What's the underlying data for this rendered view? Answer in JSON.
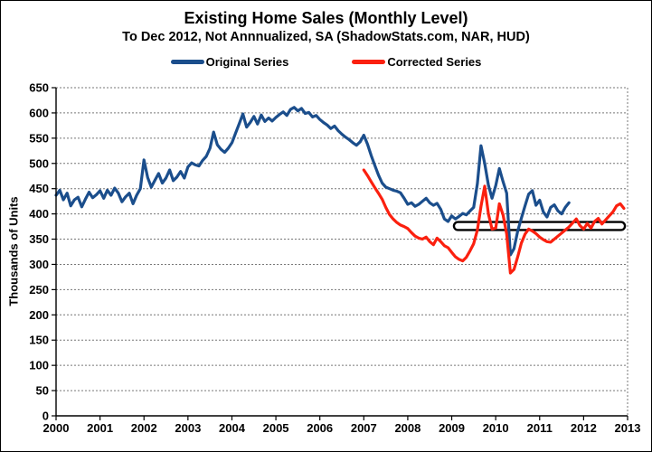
{
  "chart_data": {
    "type": "line",
    "title": "Existing Home Sales (Monthly Level)",
    "subtitle": "To Dec 2012, Not Annnualized, SA (ShadowStats.com, NAR, HUD)",
    "ylabel": "Thousands of Units",
    "xlim": [
      2000,
      2013
    ],
    "ylim": [
      0,
      650
    ],
    "x_ticks": [
      2000,
      2001,
      2002,
      2003,
      2004,
      2005,
      2006,
      2007,
      2008,
      2009,
      2010,
      2011,
      2012,
      2013
    ],
    "y_ticks": [
      0,
      50,
      100,
      150,
      200,
      250,
      300,
      350,
      400,
      450,
      500,
      550,
      600,
      650
    ],
    "grid": "horizontal-dotted",
    "legend_position": "top-center",
    "frequency": "monthly",
    "series": [
      {
        "name": "Original Series",
        "color": "#1B4E8C",
        "start_year": 2000,
        "start_month": "Jan",
        "end_year": 2011,
        "end_month": "Sep",
        "values": [
          437,
          447,
          428,
          441,
          416,
          428,
          433,
          414,
          429,
          443,
          432,
          438,
          446,
          431,
          447,
          437,
          451,
          441,
          424,
          434,
          441,
          420,
          437,
          450,
          507,
          472,
          453,
          467,
          480,
          461,
          471,
          487,
          466,
          473,
          484,
          471,
          493,
          501,
          497,
          495,
          506,
          514,
          530,
          562,
          537,
          528,
          522,
          530,
          541,
          560,
          579,
          598,
          572,
          581,
          593,
          578,
          596,
          583,
          590,
          584,
          591,
          597,
          602,
          595,
          607,
          611,
          604,
          609,
          599,
          601,
          592,
          595,
          587,
          581,
          576,
          569,
          574,
          565,
          558,
          552,
          547,
          541,
          536,
          543,
          556,
          538,
          516,
          496,
          477,
          461,
          453,
          450,
          447,
          445,
          442,
          431,
          419,
          422,
          415,
          419,
          425,
          431,
          422,
          417,
          421,
          409,
          390,
          385,
          396,
          390,
          395,
          401,
          398,
          406,
          413,
          460,
          535,
          500,
          457,
          431,
          456,
          490,
          464,
          441,
          319,
          331,
          366,
          391,
          416,
          439,
          446,
          417,
          427,
          404,
          394,
          413,
          418,
          406,
          400,
          413,
          422
        ]
      },
      {
        "name": "Corrected Series",
        "color": "#FB200F",
        "start_year": 2007,
        "start_month": "Jan",
        "end_year": 2012,
        "end_month": "Dec",
        "values": [
          487,
          476,
          464,
          452,
          441,
          429,
          413,
          399,
          390,
          383,
          378,
          375,
          371,
          363,
          356,
          352,
          350,
          354,
          345,
          339,
          352,
          345,
          337,
          333,
          324,
          315,
          310,
          307,
          314,
          327,
          341,
          368,
          415,
          455,
          400,
          370,
          372,
          420,
          398,
          360,
          283,
          290,
          315,
          342,
          360,
          370,
          366,
          361,
          354,
          349,
          345,
          344,
          350,
          356,
          362,
          368,
          374,
          382,
          390,
          377,
          370,
          381,
          372,
          385,
          391,
          380,
          388,
          396,
          404,
          416,
          420,
          411
        ]
      }
    ],
    "annotation": {
      "type": "highlight-oval",
      "x_start_year": 2009.05,
      "x_end_year": 2012.94,
      "value_center": 376,
      "value_half_range": 8,
      "fill": "#FFFFFF",
      "border": "#000000"
    }
  },
  "colors": {
    "background": "#FFFFFF",
    "frame_border": "#000000",
    "gridline": "#777777",
    "axis": "#000000",
    "text": "#000000"
  }
}
